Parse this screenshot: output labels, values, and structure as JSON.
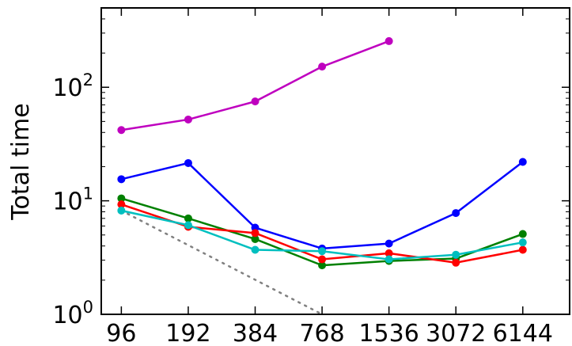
{
  "chart_data": {
    "type": "line",
    "ylabel": "Total time",
    "y_scale": "log",
    "ylim": [
      1,
      500
    ],
    "xlim": [
      -3.3,
      3.7
    ],
    "x": [
      96,
      192,
      384,
      768,
      1536,
      3072,
      6144
    ],
    "x_tick_labels": [
      "96",
      "192",
      "384",
      "768",
      "1536",
      "3072",
      "6144"
    ],
    "y_ticks": [
      {
        "value": 1,
        "base": "10",
        "exponent": "0"
      },
      {
        "value": 10,
        "base": "10",
        "exponent": "1"
      },
      {
        "value": 100,
        "base": "10",
        "exponent": "2"
      }
    ],
    "grid": false,
    "series": [
      {
        "color": "#bf00bf",
        "values": [
          42,
          52,
          75,
          152,
          255,
          null,
          null
        ]
      },
      {
        "color": "#0000ff",
        "values": [
          15.5,
          21.5,
          5.8,
          3.8,
          4.2,
          7.8,
          22
        ]
      },
      {
        "color": "#008000",
        "values": [
          10.5,
          7.0,
          4.6,
          2.7,
          2.95,
          3.1,
          5.1
        ]
      },
      {
        "color": "#ff0000",
        "values": [
          9.3,
          5.9,
          5.2,
          3.05,
          3.45,
          2.85,
          3.7
        ]
      },
      {
        "color": "#00bfbf",
        "values": [
          8.2,
          6.1,
          3.7,
          3.6,
          3.05,
          3.35,
          4.3
        ]
      }
    ],
    "reference_line": {
      "color": "#808080",
      "style": "dotted",
      "points": [
        [
          96,
          8.2
        ],
        [
          768,
          1.0
        ]
      ]
    }
  }
}
